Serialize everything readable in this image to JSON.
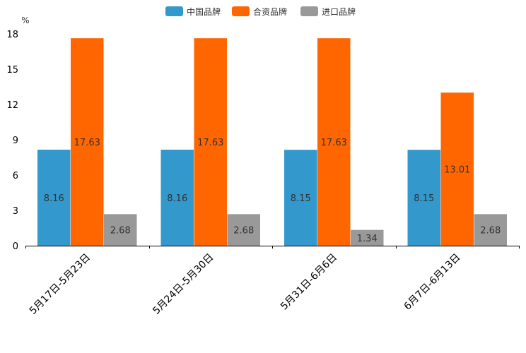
{
  "chart_data": {
    "type": "bar",
    "title": "",
    "xlabel": "",
    "ylabel": "%",
    "ylim": [
      0,
      18
    ],
    "yticks": [
      0,
      3,
      6,
      9,
      12,
      15,
      18
    ],
    "grid": false,
    "legend_position": "top-center",
    "categories": [
      "5月17日-5月23日",
      "5月24日-5月30日",
      "5月31日-6月6日",
      "6月7日-6月13日"
    ],
    "series": [
      {
        "name": "中国品牌",
        "color": "#3399cc",
        "values": [
          8.16,
          8.16,
          8.15,
          8.15
        ]
      },
      {
        "name": "合资品牌",
        "color": "#ff6600",
        "values": [
          17.63,
          17.63,
          17.63,
          13.01
        ]
      },
      {
        "name": "进口品牌",
        "color": "#999999",
        "values": [
          2.68,
          2.68,
          1.34,
          2.68
        ]
      }
    ]
  }
}
